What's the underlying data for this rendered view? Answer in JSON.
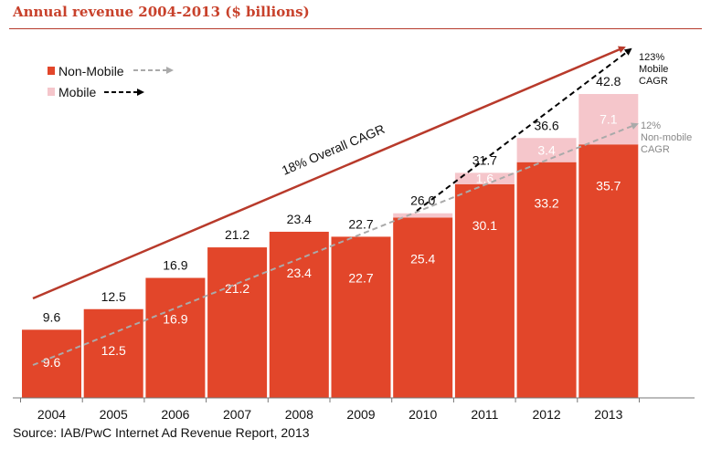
{
  "title": "Annual revenue 2004-2013 ($ billions)",
  "source": "Source: IAB/PwC Internet Ad Revenue Report, 2013",
  "colors": {
    "non_mobile": "#e2462a",
    "mobile": "#f5c6cb",
    "trend_overall": "#b83a2b",
    "trend_non_mobile": "#aaaaaa",
    "trend_mobile": "#000000",
    "title": "#c8412b"
  },
  "legend": {
    "non_mobile": "Non-Mobile",
    "mobile": "Mobile"
  },
  "annotations": {
    "overall_cagr": "18% Overall CAGR",
    "mobile_cagr": [
      "123%",
      "Mobile",
      "CAGR"
    ],
    "non_mobile_cagr": [
      "12%",
      "Non-mobile",
      "CAGR"
    ]
  },
  "chart_data": {
    "type": "bar",
    "stacked": true,
    "categories": [
      "2004",
      "2005",
      "2006",
      "2007",
      "2008",
      "2009",
      "2010",
      "2011",
      "2012",
      "2013"
    ],
    "series": [
      {
        "name": "Non-Mobile",
        "values": [
          9.6,
          12.5,
          16.9,
          21.2,
          23.4,
          22.7,
          25.4,
          30.1,
          33.2,
          35.7
        ]
      },
      {
        "name": "Mobile",
        "values": [
          0,
          0,
          0,
          0,
          0,
          0,
          0.6,
          1.6,
          3.4,
          7.1
        ]
      }
    ],
    "segment_labels": {
      "Non-Mobile": [
        "9.6",
        "12.5",
        "16.9",
        "21.2",
        "23.4",
        "22.7",
        "25.4",
        "30.1",
        "33.2",
        "35.7"
      ],
      "Mobile": [
        "",
        "",
        "",
        "",
        "",
        "",
        "",
        "1.6",
        "3.4",
        "7.1"
      ]
    },
    "totals": [
      "9.6",
      "12.5",
      "16.9",
      "21.2",
      "23.4",
      "22.7",
      "26.0",
      "31.7",
      "36.6",
      "42.8"
    ],
    "ylim": [
      0,
      45
    ],
    "grid": false,
    "legend_position": "top-left"
  }
}
